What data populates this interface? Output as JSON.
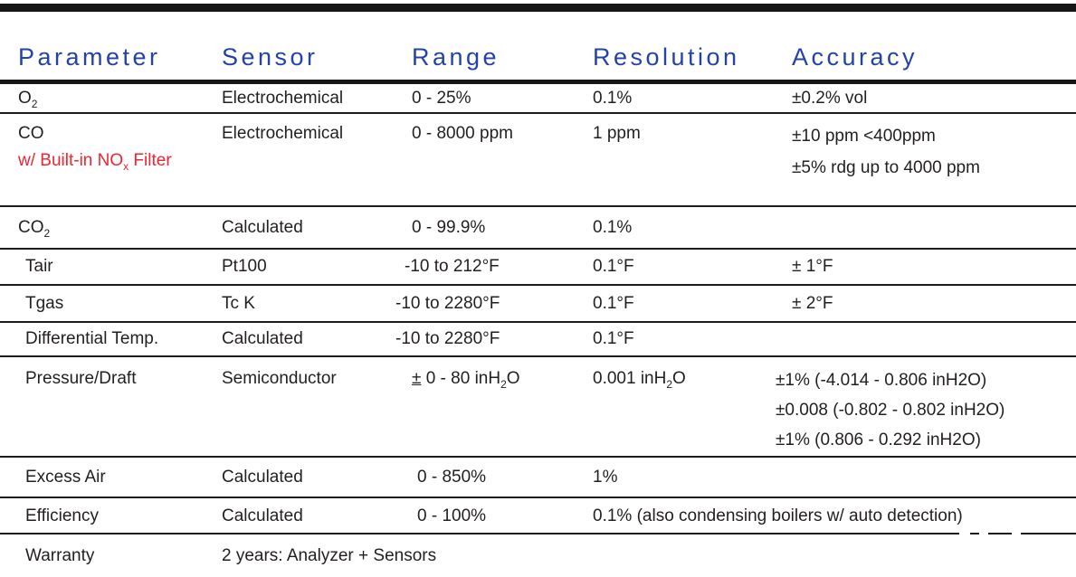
{
  "colors": {
    "header_blue": "#2343a8",
    "highlight_red": "#ee2533",
    "rule_black": "#1c1c1c"
  },
  "table": {
    "headers": [
      "Parameter",
      "Sensor",
      "Range",
      "Resolution",
      "Accuracy"
    ],
    "rows": {
      "o2": {
        "param": "O",
        "param_sub": "2",
        "sensor": "Electrochemical",
        "range": "0 - 25%",
        "resolution": "0.1%",
        "accuracy": "±0.2% vol"
      },
      "co": {
        "param": "CO",
        "note_pre": "w/ Built-in NO",
        "note_sub": "x",
        "note_post": " Filter",
        "sensor": "Electrochemical",
        "range": "0 - 8000 ppm",
        "resolution": "1 ppm",
        "accuracy_lines": [
          "±10 ppm <400ppm",
          "±5% rdg up to 4000 ppm"
        ]
      },
      "co2": {
        "param": "CO",
        "param_sub": "2",
        "sensor": "Calculated",
        "range": "0 - 99.9%",
        "resolution": "0.1%"
      },
      "tair": {
        "param": "Tair",
        "sensor": "Pt100",
        "range": "-10 to 212°F",
        "resolution": "0.1°F",
        "accuracy": "± 1°F"
      },
      "tgas": {
        "param": "Tgas",
        "sensor": "Tc K",
        "range": "-10 to 2280°F",
        "resolution": "0.1°F",
        "accuracy": "± 2°F"
      },
      "difftemp": {
        "param": "Differential Temp.",
        "sensor": "Calculated",
        "range": "-10 to 2280°F",
        "resolution": "0.1°F"
      },
      "pressure": {
        "param": "Pressure/Draft",
        "sensor": "Semiconductor",
        "range_pm": "±",
        "range_mid": " 0 - 80 inH",
        "range_sub": "2",
        "range_post": "O",
        "res_pre": "0.001 inH",
        "res_sub": "2",
        "res_post": "O",
        "accuracy_lines": [
          "±1% (-4.014 - 0.806 inH2O)",
          "±0.008 (-0.802 - 0.802 inH2O)",
          "±1% (0.806 - 0.292 inH2O)"
        ]
      },
      "excess": {
        "param": "Excess Air",
        "sensor": "Calculated",
        "range": "0 - 850%",
        "resolution": "1%"
      },
      "efficiency": {
        "param": "Efficiency",
        "sensor": "Calculated",
        "range": "0 - 100%",
        "resolution": "0.1% (also condensing boilers w/ auto detection)"
      },
      "warranty": {
        "param": "Warranty",
        "sensor": "2 years: Analyzer + Sensors"
      }
    }
  }
}
